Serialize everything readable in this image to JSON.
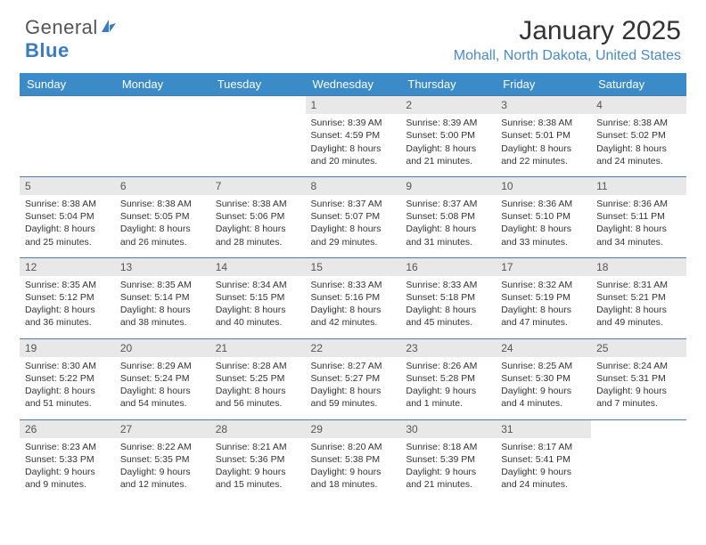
{
  "brand": {
    "part1": "General",
    "part2": "Blue"
  },
  "title": "January 2025",
  "location": "Mohall, North Dakota, United States",
  "colors": {
    "header_bg": "#3b8bc8",
    "header_text": "#ffffff",
    "row_border": "#4f7ba8",
    "daynum_bg": "#e8e8e8",
    "location_color": "#4a89c7",
    "logo_accent": "#3b7bbf"
  },
  "day_headers": [
    "Sunday",
    "Monday",
    "Tuesday",
    "Wednesday",
    "Thursday",
    "Friday",
    "Saturday"
  ],
  "weeks": [
    [
      null,
      null,
      null,
      {
        "n": "1",
        "sr": "8:39 AM",
        "ss": "4:59 PM",
        "dl1": "8 hours",
        "dl2": "and 20 minutes."
      },
      {
        "n": "2",
        "sr": "8:39 AM",
        "ss": "5:00 PM",
        "dl1": "8 hours",
        "dl2": "and 21 minutes."
      },
      {
        "n": "3",
        "sr": "8:38 AM",
        "ss": "5:01 PM",
        "dl1": "8 hours",
        "dl2": "and 22 minutes."
      },
      {
        "n": "4",
        "sr": "8:38 AM",
        "ss": "5:02 PM",
        "dl1": "8 hours",
        "dl2": "and 24 minutes."
      }
    ],
    [
      {
        "n": "5",
        "sr": "8:38 AM",
        "ss": "5:04 PM",
        "dl1": "8 hours",
        "dl2": "and 25 minutes."
      },
      {
        "n": "6",
        "sr": "8:38 AM",
        "ss": "5:05 PM",
        "dl1": "8 hours",
        "dl2": "and 26 minutes."
      },
      {
        "n": "7",
        "sr": "8:38 AM",
        "ss": "5:06 PM",
        "dl1": "8 hours",
        "dl2": "and 28 minutes."
      },
      {
        "n": "8",
        "sr": "8:37 AM",
        "ss": "5:07 PM",
        "dl1": "8 hours",
        "dl2": "and 29 minutes."
      },
      {
        "n": "9",
        "sr": "8:37 AM",
        "ss": "5:08 PM",
        "dl1": "8 hours",
        "dl2": "and 31 minutes."
      },
      {
        "n": "10",
        "sr": "8:36 AM",
        "ss": "5:10 PM",
        "dl1": "8 hours",
        "dl2": "and 33 minutes."
      },
      {
        "n": "11",
        "sr": "8:36 AM",
        "ss": "5:11 PM",
        "dl1": "8 hours",
        "dl2": "and 34 minutes."
      }
    ],
    [
      {
        "n": "12",
        "sr": "8:35 AM",
        "ss": "5:12 PM",
        "dl1": "8 hours",
        "dl2": "and 36 minutes."
      },
      {
        "n": "13",
        "sr": "8:35 AM",
        "ss": "5:14 PM",
        "dl1": "8 hours",
        "dl2": "and 38 minutes."
      },
      {
        "n": "14",
        "sr": "8:34 AM",
        "ss": "5:15 PM",
        "dl1": "8 hours",
        "dl2": "and 40 minutes."
      },
      {
        "n": "15",
        "sr": "8:33 AM",
        "ss": "5:16 PM",
        "dl1": "8 hours",
        "dl2": "and 42 minutes."
      },
      {
        "n": "16",
        "sr": "8:33 AM",
        "ss": "5:18 PM",
        "dl1": "8 hours",
        "dl2": "and 45 minutes."
      },
      {
        "n": "17",
        "sr": "8:32 AM",
        "ss": "5:19 PM",
        "dl1": "8 hours",
        "dl2": "and 47 minutes."
      },
      {
        "n": "18",
        "sr": "8:31 AM",
        "ss": "5:21 PM",
        "dl1": "8 hours",
        "dl2": "and 49 minutes."
      }
    ],
    [
      {
        "n": "19",
        "sr": "8:30 AM",
        "ss": "5:22 PM",
        "dl1": "8 hours",
        "dl2": "and 51 minutes."
      },
      {
        "n": "20",
        "sr": "8:29 AM",
        "ss": "5:24 PM",
        "dl1": "8 hours",
        "dl2": "and 54 minutes."
      },
      {
        "n": "21",
        "sr": "8:28 AM",
        "ss": "5:25 PM",
        "dl1": "8 hours",
        "dl2": "and 56 minutes."
      },
      {
        "n": "22",
        "sr": "8:27 AM",
        "ss": "5:27 PM",
        "dl1": "8 hours",
        "dl2": "and 59 minutes."
      },
      {
        "n": "23",
        "sr": "8:26 AM",
        "ss": "5:28 PM",
        "dl1": "9 hours",
        "dl2": "and 1 minute."
      },
      {
        "n": "24",
        "sr": "8:25 AM",
        "ss": "5:30 PM",
        "dl1": "9 hours",
        "dl2": "and 4 minutes."
      },
      {
        "n": "25",
        "sr": "8:24 AM",
        "ss": "5:31 PM",
        "dl1": "9 hours",
        "dl2": "and 7 minutes."
      }
    ],
    [
      {
        "n": "26",
        "sr": "8:23 AM",
        "ss": "5:33 PM",
        "dl1": "9 hours",
        "dl2": "and 9 minutes."
      },
      {
        "n": "27",
        "sr": "8:22 AM",
        "ss": "5:35 PM",
        "dl1": "9 hours",
        "dl2": "and 12 minutes."
      },
      {
        "n": "28",
        "sr": "8:21 AM",
        "ss": "5:36 PM",
        "dl1": "9 hours",
        "dl2": "and 15 minutes."
      },
      {
        "n": "29",
        "sr": "8:20 AM",
        "ss": "5:38 PM",
        "dl1": "9 hours",
        "dl2": "and 18 minutes."
      },
      {
        "n": "30",
        "sr": "8:18 AM",
        "ss": "5:39 PM",
        "dl1": "9 hours",
        "dl2": "and 21 minutes."
      },
      {
        "n": "31",
        "sr": "8:17 AM",
        "ss": "5:41 PM",
        "dl1": "9 hours",
        "dl2": "and 24 minutes."
      },
      null
    ]
  ],
  "labels": {
    "sunrise": "Sunrise:",
    "sunset": "Sunset:",
    "daylight": "Daylight:"
  }
}
